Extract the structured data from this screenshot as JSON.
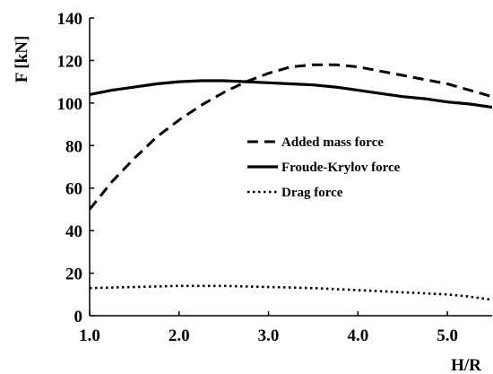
{
  "chart_data": {
    "type": "line",
    "title": "",
    "xlabel": "H/R",
    "ylabel": "F [kN]",
    "xlim": [
      1.0,
      5.5
    ],
    "ylim": [
      0,
      140
    ],
    "xticks": [
      1.0,
      2.0,
      3.0,
      4.0,
      5.0
    ],
    "xtick_labels": [
      "1.0",
      "2.0",
      "3.0",
      "4.0",
      "5.0"
    ],
    "yticks": [
      0,
      20,
      40,
      60,
      80,
      100,
      120,
      140
    ],
    "ytick_labels": [
      "0",
      "20",
      "40",
      "60",
      "80",
      "100",
      "120",
      "140"
    ],
    "grid": false,
    "legend_position": "right",
    "series": [
      {
        "name": "Added mass force",
        "style": "dashed",
        "x": [
          1.0,
          1.25,
          1.5,
          1.75,
          2.0,
          2.25,
          2.5,
          2.75,
          3.0,
          3.25,
          3.5,
          3.75,
          4.0,
          4.25,
          4.5,
          4.75,
          5.0,
          5.25,
          5.5
        ],
        "y": [
          50,
          63,
          74,
          84,
          92,
          99,
          105,
          110,
          114,
          117,
          118,
          118,
          117,
          115,
          113,
          111,
          109,
          106,
          103
        ]
      },
      {
        "name": "Froude-Krylov force",
        "style": "solid",
        "x": [
          1.0,
          1.25,
          1.5,
          1.75,
          2.0,
          2.25,
          2.5,
          2.75,
          3.0,
          3.25,
          3.5,
          3.75,
          4.0,
          4.25,
          4.5,
          4.75,
          5.0,
          5.25,
          5.5
        ],
        "y": [
          104,
          106,
          107.5,
          109,
          110,
          110.5,
          110.5,
          110,
          109.5,
          109,
          108.5,
          107.5,
          106,
          104.5,
          103,
          102,
          100.5,
          99.5,
          98
        ]
      },
      {
        "name": "Drag  force",
        "style": "dotted",
        "x": [
          1.0,
          1.5,
          2.0,
          2.5,
          3.0,
          3.5,
          4.0,
          4.5,
          5.0,
          5.25,
          5.5
        ],
        "y": [
          13,
          13.5,
          14,
          14,
          13.5,
          13,
          12,
          11,
          10,
          9,
          7.5
        ]
      }
    ]
  }
}
